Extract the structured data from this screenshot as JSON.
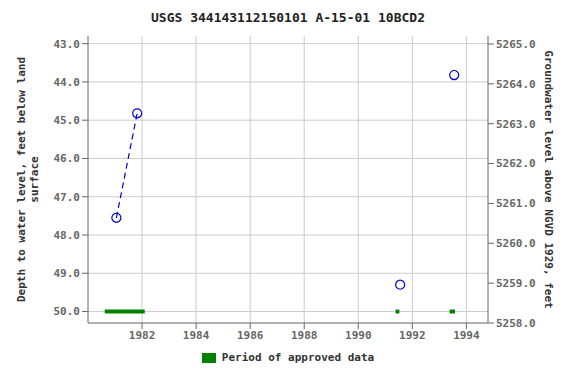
{
  "chart_data": {
    "type": "scatter",
    "title": "USGS 344143112150101 A-15-01 10BCD2",
    "y_label": "Depth to water level, feet below land\nsurface",
    "y2_label": "Groundwater level above NGVD 1929, feet",
    "xlim": [
      1980.0,
      1994.8
    ],
    "xticks": [
      1982,
      1984,
      1986,
      1988,
      1990,
      1992,
      1994
    ],
    "ylim": [
      50.3,
      42.8
    ],
    "yticks": [
      {
        "value": 43.0,
        "label": "43.0"
      },
      {
        "value": 44.0,
        "label": "44.0"
      },
      {
        "value": 45.0,
        "label": "45.0"
      },
      {
        "value": 46.0,
        "label": "46.0"
      },
      {
        "value": 47.0,
        "label": "47.0"
      },
      {
        "value": 48.0,
        "label": "48.0"
      },
      {
        "value": 49.0,
        "label": "49.0"
      },
      {
        "value": 50.0,
        "label": "50.0"
      }
    ],
    "y2lim": [
      5258.0,
      5265.2
    ],
    "y2ticks": [
      {
        "value": 5258.0,
        "label": "5258.0"
      },
      {
        "value": 5259.0,
        "label": "5259.0"
      },
      {
        "value": 5260.0,
        "label": "5260.0"
      },
      {
        "value": 5261.0,
        "label": "5261.0"
      },
      {
        "value": 5262.0,
        "label": "5262.0"
      },
      {
        "value": 5263.0,
        "label": "5263.0"
      },
      {
        "value": 5264.0,
        "label": "5264.0"
      },
      {
        "value": 5265.0,
        "label": "5265.0"
      }
    ],
    "grid": true,
    "legend": "bottom",
    "series": [
      {
        "type": "scatter",
        "marker": "open_circle",
        "color": "#0000cc",
        "x": [
          1981.05,
          1981.82,
          1991.55,
          1993.55
        ],
        "values": [
          47.55,
          44.82,
          49.3,
          43.82
        ]
      },
      {
        "type": "line",
        "line_style": "dashed",
        "color": "#0000cc",
        "x": [
          1981.05,
          1981.82
        ],
        "values": [
          47.55,
          44.82
        ]
      },
      {
        "type": "segment",
        "name": "Period of approved data",
        "color": "#008000",
        "x_start": [
          1980.62,
          1991.38,
          1993.38
        ],
        "x_end": [
          1982.1,
          1991.52,
          1993.58
        ],
        "values": [
          50.0,
          50.0,
          50.0
        ]
      }
    ]
  }
}
